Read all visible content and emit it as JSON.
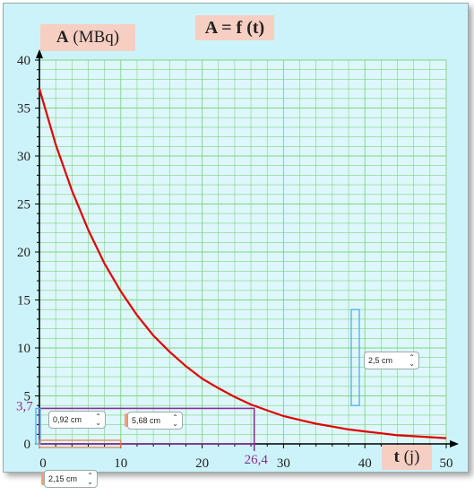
{
  "chart_data": {
    "type": "line",
    "title": "A = f (t)",
    "ylabel_bold": "A",
    "ylabel_unit": "(MBq)",
    "xlabel_bold": "t",
    "xlabel_unit": "(j)",
    "xlim": [
      0,
      50
    ],
    "ylim": [
      0,
      40
    ],
    "x_ticks": [
      "0",
      "10",
      "20",
      "30",
      "40",
      "50"
    ],
    "y_ticks": [
      "0",
      "5",
      "10",
      "15",
      "20",
      "25",
      "30",
      "35",
      "40"
    ],
    "grid": true,
    "series": [
      {
        "color": "#e00000",
        "x": [
          0,
          2,
          4,
          6,
          8,
          10,
          12,
          14,
          16,
          18,
          20,
          22,
          24,
          26,
          28,
          30,
          32,
          34,
          36,
          38,
          40,
          42,
          44,
          46,
          48,
          50
        ],
        "values": [
          37.0,
          31.2,
          26.4,
          22.3,
          18.8,
          15.9,
          13.4,
          11.3,
          9.6,
          8.1,
          6.8,
          5.8,
          4.9,
          4.1,
          3.5,
          2.9,
          2.5,
          2.1,
          1.8,
          1.5,
          1.3,
          1.1,
          0.9,
          0.8,
          0.7,
          0.6
        ]
      }
    ],
    "annotations": [
      {
        "label": "3,7",
        "y": 3.7,
        "color": "#8b2f8f"
      },
      {
        "label": "26,4",
        "x": 26.4,
        "color": "#8b2f8f"
      }
    ]
  },
  "ui": {
    "y_axis_label": {
      "bold": "A",
      "unit": "(MBq)"
    },
    "x_axis_label": {
      "bold": "t",
      "unit": "(j)"
    },
    "title": "A = f (t)",
    "controls": {
      "width_1": "5,68 cm",
      "height_1": "0,92 cm",
      "height_2": "2,5 cm",
      "width_2": "2,15 cm"
    }
  },
  "colors": {
    "background": "#cdf3fa",
    "grid": "#7fd37f",
    "curve": "#e00000",
    "annotation": "#8b2f8f",
    "label_box": "#f6cfc2"
  }
}
